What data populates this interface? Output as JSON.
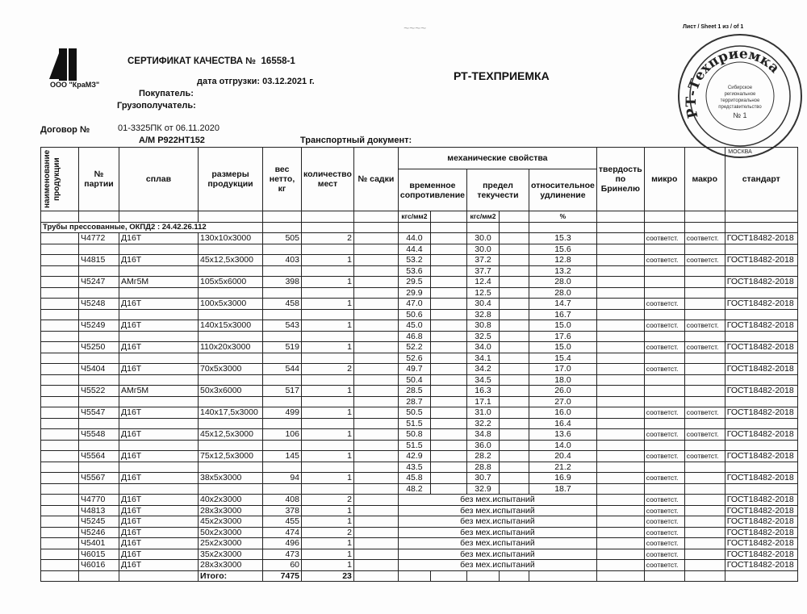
{
  "header": {
    "handwritten": "",
    "sheet": "Лист / Sheet 1 из / of 1",
    "company": "ООО \"КраМЗ\"",
    "logo_text": "КраМЗ",
    "title": "СЕРТИФИКАТ КАЧЕСТВА №",
    "cert_no": "16558-1",
    "ship_date_label": "дата отгрузки:",
    "ship_date": "03.12.2021 г.",
    "buyer_label": "Покупатель:",
    "consignee_label": "Грузополучатель:",
    "contract_label": "Договор №",
    "contract": "01-3325ПК от 06.11.2020",
    "vehicle": "А/М Р922НТ152",
    "transport_label": "Транспортный документ:",
    "inspector": "РТ-ТЕХПРИЕМКА"
  },
  "stamp": {
    "ring": "РТ-Техприемка",
    "center": "Сибирское региональное территориальное представительство № 1",
    "bottom": "МОСКВА"
  },
  "table": {
    "headers": {
      "product": "наименование продукции",
      "batch": "№ партии",
      "alloy": "сплав",
      "size": "размеры продукции",
      "weight": "вес нетто, кг",
      "count": "количество мест",
      "cage": "№ садки",
      "mech": "механические свойства",
      "tensile": "временное сопротивление",
      "yield": "предел текучести",
      "elong": "относительное удлинение",
      "hardness": "твердость по Бринелю",
      "micro": "микро",
      "macro": "макро",
      "standard": "стандарт",
      "unit_tensile": "кгс/мм2",
      "unit_yield": "кгс/мм2",
      "unit_elong": "%"
    },
    "group": "Трубы прессованные,    ОКПД2 : 24.42.26.112",
    "tested": [
      {
        "batch": "Ч4772",
        "alloy": "Д16Т",
        "size": "130x10x3000",
        "weight": "505",
        "count": "2",
        "tensile": [
          "44.0",
          "44.4"
        ],
        "yield": [
          "30.0",
          "30.0"
        ],
        "elong": [
          "15.3",
          "15.6"
        ],
        "micro": "соответст.",
        "macro": "соответст.",
        "standard": "ГОСТ18482-2018"
      },
      {
        "batch": "Ч4815",
        "alloy": "Д16Т",
        "size": "45x12,5x3000",
        "weight": "403",
        "count": "1",
        "tensile": [
          "53.2",
          "53.6"
        ],
        "yield": [
          "37.2",
          "37.7"
        ],
        "elong": [
          "12.8",
          "13.2"
        ],
        "micro": "соответст.",
        "macro": "соответст.",
        "standard": "ГОСТ18482-2018"
      },
      {
        "batch": "Ч5247",
        "alloy": "АМг5М",
        "size": "105x5x6000",
        "weight": "398",
        "count": "1",
        "tensile": [
          "29.5",
          "29.9"
        ],
        "yield": [
          "12.4",
          "12.5"
        ],
        "elong": [
          "28.0",
          "28.0"
        ],
        "micro": "",
        "macro": "",
        "standard": "ГОСТ18482-2018"
      },
      {
        "batch": "Ч5248",
        "alloy": "Д16Т",
        "size": "100x5x3000",
        "weight": "458",
        "count": "1",
        "tensile": [
          "47.0",
          "50.6"
        ],
        "yield": [
          "30.4",
          "32.8"
        ],
        "elong": [
          "14.7",
          "16.7"
        ],
        "micro": "соответст.",
        "macro": "",
        "standard": "ГОСТ18482-2018"
      },
      {
        "batch": "Ч5249",
        "alloy": "Д16Т",
        "size": "140x15x3000",
        "weight": "543",
        "count": "1",
        "tensile": [
          "45.0",
          "46.8"
        ],
        "yield": [
          "30.8",
          "32.5"
        ],
        "elong": [
          "15.0",
          "17.6"
        ],
        "micro": "соответст.",
        "macro": "соответст.",
        "standard": "ГОСТ18482-2018"
      },
      {
        "batch": "Ч5250",
        "alloy": "Д16Т",
        "size": "110x20x3000",
        "weight": "519",
        "count": "1",
        "tensile": [
          "52.2",
          "52.6"
        ],
        "yield": [
          "34.0",
          "34.1"
        ],
        "elong": [
          "15.0",
          "15.4"
        ],
        "micro": "соответст.",
        "macro": "соответст.",
        "standard": "ГОСТ18482-2018"
      },
      {
        "batch": "Ч5404",
        "alloy": "Д16Т",
        "size": "70x5x3000",
        "weight": "544",
        "count": "2",
        "tensile": [
          "49.7",
          "50.4"
        ],
        "yield": [
          "34.2",
          "34.5"
        ],
        "elong": [
          "17.0",
          "18.0"
        ],
        "micro": "соответст.",
        "macro": "",
        "standard": "ГОСТ18482-2018"
      },
      {
        "batch": "Ч5522",
        "alloy": "АМг5М",
        "size": "50x3x6000",
        "weight": "517",
        "count": "1",
        "tensile": [
          "28.5",
          "28.7"
        ],
        "yield": [
          "16.3",
          "17.1"
        ],
        "elong": [
          "26.0",
          "27.0"
        ],
        "micro": "",
        "macro": "",
        "standard": "ГОСТ18482-2018"
      },
      {
        "batch": "Ч5547",
        "alloy": "Д16Т",
        "size": "140x17,5x3000",
        "weight": "499",
        "count": "1",
        "tensile": [
          "50.5",
          "51.5"
        ],
        "yield": [
          "31.0",
          "32.2"
        ],
        "elong": [
          "16.0",
          "16.4"
        ],
        "micro": "соответст.",
        "macro": "соответст.",
        "standard": "ГОСТ18482-2018"
      },
      {
        "batch": "Ч5548",
        "alloy": "Д16Т",
        "size": "45x12,5x3000",
        "weight": "106",
        "count": "1",
        "tensile": [
          "50.8",
          "51.5"
        ],
        "yield": [
          "34.8",
          "36.0"
        ],
        "elong": [
          "13.6",
          "14.0"
        ],
        "micro": "соответст.",
        "macro": "соответст.",
        "standard": "ГОСТ18482-2018"
      },
      {
        "batch": "Ч5564",
        "alloy": "Д16Т",
        "size": "75x12,5x3000",
        "weight": "145",
        "count": "1",
        "tensile": [
          "42.9",
          "43.5"
        ],
        "yield": [
          "28.2",
          "28.8"
        ],
        "elong": [
          "20.4",
          "21.2"
        ],
        "micro": "соответст.",
        "macro": "соответст.",
        "standard": "ГОСТ18482-2018"
      },
      {
        "batch": "Ч5567",
        "alloy": "Д16Т",
        "size": "38x5x3000",
        "weight": "94",
        "count": "1",
        "tensile": [
          "45.8",
          "48.2"
        ],
        "yield": [
          "30.7",
          "32.9"
        ],
        "elong": [
          "16.9",
          "18.7"
        ],
        "micro": "соответст.",
        "macro": "",
        "standard": "ГОСТ18482-2018"
      }
    ],
    "untested": [
      {
        "batch": "Ч4770",
        "alloy": "Д16Т",
        "size": "40x2x3000",
        "weight": "408",
        "count": "2",
        "note": "без мех.испытаний",
        "micro": "соответст.",
        "standard": "ГОСТ18482-2018"
      },
      {
        "batch": "Ч4813",
        "alloy": "Д16Т",
        "size": "28x3x3000",
        "weight": "378",
        "count": "1",
        "note": "без мех.испытаний",
        "micro": "соответст.",
        "standard": "ГОСТ18482-2018"
      },
      {
        "batch": "Ч5245",
        "alloy": "Д16Т",
        "size": "45x2x3000",
        "weight": "455",
        "count": "1",
        "note": "без мех.испытаний",
        "micro": "соответст.",
        "standard": "ГОСТ18482-2018"
      },
      {
        "batch": "Ч5246",
        "alloy": "Д16Т",
        "size": "50x2x3000",
        "weight": "474",
        "count": "2",
        "note": "без мех.испытаний",
        "micro": "соответст.",
        "standard": "ГОСТ18482-2018"
      },
      {
        "batch": "Ч5401",
        "alloy": "Д16Т",
        "size": "25x2x3000",
        "weight": "496",
        "count": "1",
        "note": "без мех.испытаний",
        "micro": "соответст.",
        "standard": "ГОСТ18482-2018"
      },
      {
        "batch": "Ч6015",
        "alloy": "Д16Т",
        "size": "35x2x3000",
        "weight": "473",
        "count": "1",
        "note": "без мех.испытаний",
        "micro": "соответст.",
        "standard": "ГОСТ18482-2018"
      },
      {
        "batch": "Ч6016",
        "alloy": "Д16Т",
        "size": "28x3x3000",
        "weight": "60",
        "count": "1",
        "note": "без мех.испытаний",
        "micro": "соответст.",
        "standard": "ГОСТ18482-2018"
      }
    ],
    "total": {
      "label": "Итого:",
      "weight": "7475",
      "count": "23"
    }
  }
}
